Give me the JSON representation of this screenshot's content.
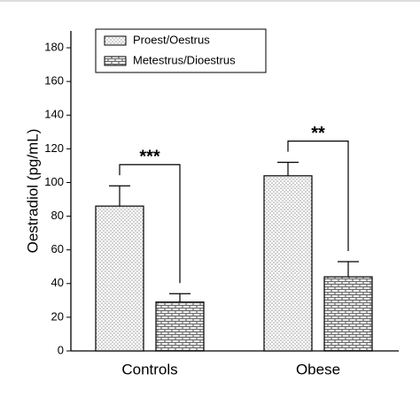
{
  "chart_data": {
    "type": "bar",
    "y_label": "Oestradiol (pg/mL)",
    "categories": [
      "Controls",
      "Obese"
    ],
    "series": [
      {
        "name": "Proest/Oestrus",
        "color": "#9a9a9a",
        "pattern": "dots",
        "values": [
          86,
          104
        ],
        "errors": [
          12,
          8
        ]
      },
      {
        "name": "Metestrus/Dioestrus",
        "color": "#6a6a6a",
        "pattern": "bricks",
        "values": [
          29,
          44
        ],
        "errors": [
          5,
          9
        ]
      }
    ],
    "annotations": [
      "***",
      "**"
    ],
    "ylim": [
      0,
      190
    ],
    "yticks": [
      0,
      20,
      40,
      60,
      80,
      100,
      120,
      140,
      160,
      180
    ],
    "legend": "upper left"
  }
}
